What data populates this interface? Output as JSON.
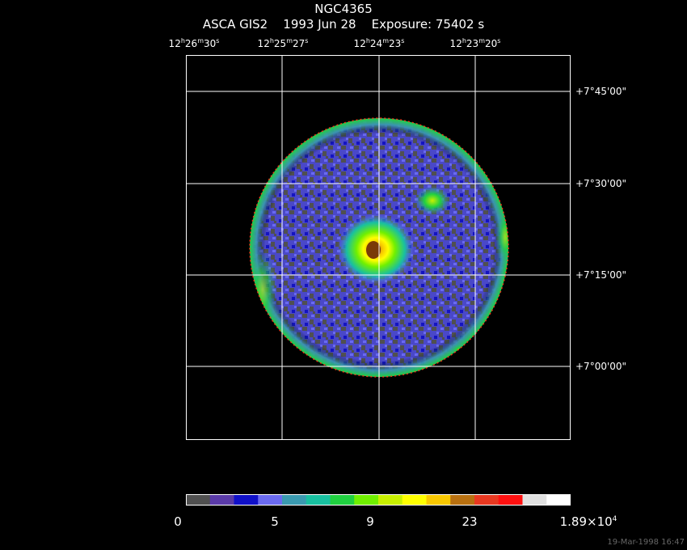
{
  "header": {
    "line1": "NGC4365",
    "line2": "ASCA GIS2    1993 Jun 28    Exposure: 75402 s"
  },
  "ra_ticks": [
    {
      "h": "12",
      "m": "26",
      "s": "30"
    },
    {
      "h": "12",
      "m": "25",
      "s": "27"
    },
    {
      "h": "12",
      "m": "24",
      "s": "23"
    },
    {
      "h": "12",
      "m": "23",
      "s": "20"
    }
  ],
  "dec_ticks": [
    "+7°45'00\"",
    "+7°30'00\"",
    "+7°15'00\"",
    "+7°00'00\""
  ],
  "colorbar": {
    "colors": [
      "#505050",
      "#5a3aa8",
      "#1010c8",
      "#6a6af0",
      "#3a9ab0",
      "#18c0a0",
      "#20d040",
      "#70f000",
      "#c8f000",
      "#ffff00",
      "#f8c800",
      "#b87010",
      "#e83820",
      "#ff1010",
      "#e0e0e0",
      "#ffffff"
    ],
    "labels": [
      "0",
      "5",
      "9",
      "23"
    ],
    "max_label_base": "1.89×10",
    "max_label_exp": "4"
  },
  "timestamp": "19-Mar-1998 16:47"
}
